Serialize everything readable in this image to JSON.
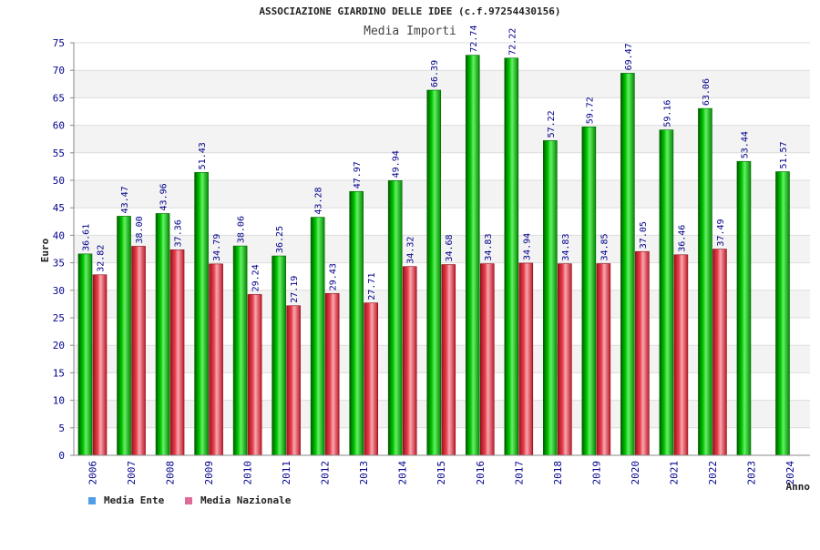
{
  "chart_data": {
    "type": "bar",
    "title": "ASSOCIAZIONE GIARDINO DELLE IDEE (c.f.97254430156)",
    "subtitle": "Media Importi",
    "ylabel": "Euro",
    "xlabel": "Anno",
    "ylim": [
      0,
      75
    ],
    "yticks": [
      0,
      5,
      10,
      15,
      20,
      25,
      30,
      35,
      40,
      45,
      50,
      55,
      60,
      65,
      70,
      75
    ],
    "grid": true,
    "legend_position": "bottom-left",
    "categories": [
      "2006",
      "2007",
      "2008",
      "2009",
      "2010",
      "2011",
      "2012",
      "2013",
      "2014",
      "2015",
      "2016",
      "2017",
      "2018",
      "2019",
      "2020",
      "2021",
      "2022",
      "2023",
      "2024"
    ],
    "series": [
      {
        "name": "Media Ente",
        "color": "#00aa00",
        "legend_color": "#4f9de8",
        "values": [
          36.61,
          43.47,
          43.96,
          51.43,
          38.06,
          36.25,
          43.28,
          47.97,
          49.94,
          66.39,
          72.74,
          72.22,
          57.22,
          59.72,
          69.47,
          59.16,
          63.06,
          53.44,
          51.57
        ],
        "labels": [
          "36.61",
          "43.47",
          "43.96",
          "51.43",
          "38.06",
          "36.25",
          "43.28",
          "47.97",
          "49.94",
          "66.39",
          "72.74",
          "72.22",
          "57.22",
          "59.72",
          "69.47",
          "59.16",
          "63.06",
          "53.44",
          "51.57"
        ]
      },
      {
        "name": "Media Nazionale",
        "color": "#dd2233",
        "legend_color": "#e06a9a",
        "values": [
          32.82,
          38.0,
          37.36,
          34.79,
          29.24,
          27.19,
          29.43,
          27.71,
          34.32,
          34.68,
          34.83,
          34.94,
          34.83,
          34.85,
          37.05,
          36.46,
          37.49,
          null,
          null
        ],
        "labels": [
          "32.82",
          "38.00",
          "37.36",
          "34.79",
          "29.24",
          "27.19",
          "29.43",
          "27.71",
          "34.32",
          "34.68",
          "34.83",
          "34.94",
          "34.83",
          "34.85",
          "37.05",
          "36.46",
          "37.49",
          "",
          ""
        ]
      }
    ]
  }
}
